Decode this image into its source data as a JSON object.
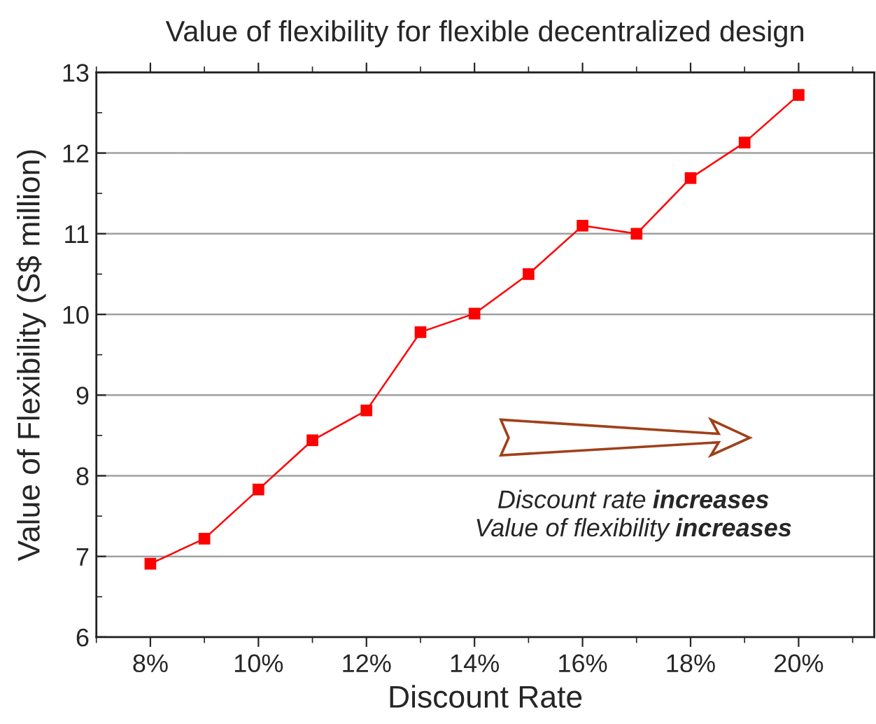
{
  "chart_data": {
    "type": "line",
    "title": "Value of flexibility for flexible decentralized design",
    "xlabel": "Discount Rate",
    "ylabel": "Value of Flexibility (S$ million)",
    "x": [
      8,
      9,
      10,
      11,
      12,
      13,
      14,
      15,
      16,
      17,
      18,
      19,
      20
    ],
    "series": [
      {
        "color": "#ff0000",
        "values": [
          6.91,
          7.22,
          7.83,
          8.44,
          8.81,
          9.78,
          10.01,
          10.5,
          11.1,
          11.0,
          11.69,
          12.13,
          12.72
        ]
      }
    ],
    "xlim": [
      7,
      21.4
    ],
    "xticks": [
      {
        "value": 8,
        "label": "8%"
      },
      {
        "value": 10,
        "label": "10%"
      },
      {
        "value": 12,
        "label": "12%"
      },
      {
        "value": 14,
        "label": "14%"
      },
      {
        "value": 16,
        "label": "16%"
      },
      {
        "value": 18,
        "label": "18%"
      },
      {
        "value": 20,
        "label": "20%"
      }
    ],
    "ylim": [
      6,
      13
    ],
    "yticks": [
      6,
      7,
      8,
      9,
      10,
      11,
      12,
      13
    ],
    "grid": "y",
    "marker": "square",
    "line_style": "solid",
    "annotations": [
      "Discount rate increases",
      "Value of flexibility increases"
    ]
  }
}
